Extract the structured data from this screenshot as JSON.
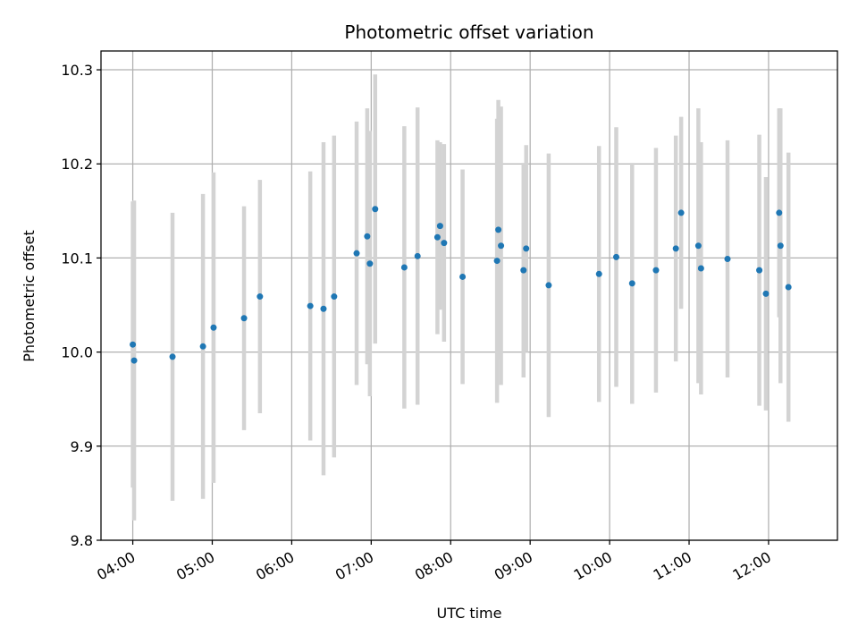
{
  "chart_data": {
    "type": "scatter",
    "title": "Photometric offset variation",
    "xlabel": "UTC time",
    "ylabel": "Photometric offset",
    "x_axis_kind": "time",
    "xlim": [
      "03:36",
      "12:52"
    ],
    "ylim": [
      9.8,
      10.32
    ],
    "grid": true,
    "x_ticks": [
      "04:00",
      "05:00",
      "06:00",
      "07:00",
      "08:00",
      "09:00",
      "10:00",
      "11:00",
      "12:00"
    ],
    "y_ticks": [
      "9.8",
      "9.9",
      "10.0",
      "10.1",
      "10.2",
      "10.3"
    ],
    "point_color": "#1f77b4",
    "errorbar_color": "#d3d3d3",
    "points": [
      {
        "x": "04:00",
        "y": 10.008,
        "err": 0.152
      },
      {
        "x": "04:01",
        "y": 9.991,
        "err": 0.17
      },
      {
        "x": "04:30",
        "y": 9.995,
        "err": 0.153
      },
      {
        "x": "04:53",
        "y": 10.006,
        "err": 0.162
      },
      {
        "x": "05:01",
        "y": 10.026,
        "err": 0.165
      },
      {
        "x": "05:24",
        "y": 10.036,
        "err": 0.119
      },
      {
        "x": "05:36",
        "y": 10.059,
        "err": 0.124
      },
      {
        "x": "06:14",
        "y": 10.049,
        "err": 0.143
      },
      {
        "x": "06:24",
        "y": 10.046,
        "err": 0.177
      },
      {
        "x": "06:32",
        "y": 10.059,
        "err": 0.171
      },
      {
        "x": "06:49",
        "y": 10.105,
        "err": 0.14
      },
      {
        "x": "06:57",
        "y": 10.123,
        "err": 0.136
      },
      {
        "x": "06:59",
        "y": 10.094,
        "err": 0.141
      },
      {
        "x": "07:03",
        "y": 10.152,
        "err": 0.143
      },
      {
        "x": "07:25",
        "y": 10.09,
        "err": 0.15
      },
      {
        "x": "07:35",
        "y": 10.102,
        "err": 0.158
      },
      {
        "x": "07:50",
        "y": 10.122,
        "err": 0.103
      },
      {
        "x": "07:52",
        "y": 10.134,
        "err": 0.089
      },
      {
        "x": "07:55",
        "y": 10.116,
        "err": 0.105
      },
      {
        "x": "08:09",
        "y": 10.08,
        "err": 0.114
      },
      {
        "x": "08:35",
        "y": 10.097,
        "err": 0.151
      },
      {
        "x": "08:36",
        "y": 10.13,
        "err": 0.138
      },
      {
        "x": "08:38",
        "y": 10.113,
        "err": 0.148
      },
      {
        "x": "08:55",
        "y": 10.087,
        "err": 0.114
      },
      {
        "x": "08:57",
        "y": 10.11,
        "err": 0.11
      },
      {
        "x": "09:14",
        "y": 10.071,
        "err": 0.14
      },
      {
        "x": "09:52",
        "y": 10.083,
        "err": 0.136
      },
      {
        "x": "10:05",
        "y": 10.101,
        "err": 0.138
      },
      {
        "x": "10:17",
        "y": 10.073,
        "err": 0.128
      },
      {
        "x": "10:35",
        "y": 10.087,
        "err": 0.13
      },
      {
        "x": "10:50",
        "y": 10.11,
        "err": 0.12
      },
      {
        "x": "10:54",
        "y": 10.148,
        "err": 0.102
      },
      {
        "x": "11:07",
        "y": 10.113,
        "err": 0.146
      },
      {
        "x": "11:09",
        "y": 10.089,
        "err": 0.134
      },
      {
        "x": "11:29",
        "y": 10.099,
        "err": 0.126
      },
      {
        "x": "11:53",
        "y": 10.087,
        "err": 0.144
      },
      {
        "x": "11:58",
        "y": 10.062,
        "err": 0.124
      },
      {
        "x": "12:08",
        "y": 10.148,
        "err": 0.111
      },
      {
        "x": "12:09",
        "y": 10.113,
        "err": 0.146
      },
      {
        "x": "12:15",
        "y": 10.069,
        "err": 0.143
      }
    ]
  }
}
